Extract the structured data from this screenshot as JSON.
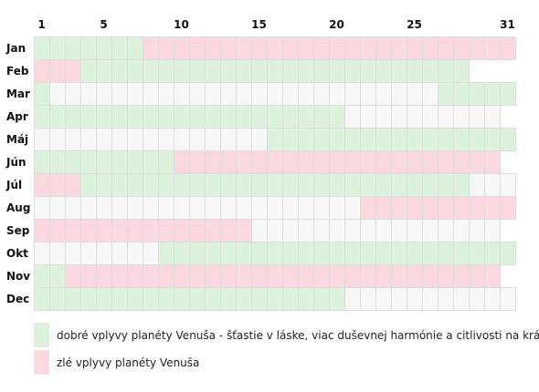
{
  "chart_data": {
    "type": "heatmap",
    "title": "",
    "day_tick_labels": [
      "1",
      "5",
      "10",
      "15",
      "20",
      "25",
      "31"
    ],
    "day_ticks": [
      1,
      5,
      10,
      15,
      20,
      25,
      31
    ],
    "months": [
      "Jan",
      "Feb",
      "Mar",
      "Apr",
      "Máj",
      "Jún",
      "Júl",
      "Aug",
      "Sep",
      "Okt",
      "Nov",
      "Dec"
    ],
    "days_in_month": [
      31,
      28,
      31,
      30,
      31,
      30,
      31,
      31,
      30,
      31,
      30,
      31
    ],
    "categories": {
      "good": "dobré vplyvy planéty Venuša - šťastie v láske, viac duševnej harmónie a citlivosti na krásu",
      "bad": "zlé vplyvy planéty Venuša"
    },
    "ranges": [
      [
        {
          "from": 1,
          "to": 7,
          "type": "good"
        },
        {
          "from": 8,
          "to": 31,
          "type": "bad"
        }
      ],
      [
        {
          "from": 1,
          "to": 3,
          "type": "bad"
        },
        {
          "from": 4,
          "to": 28,
          "type": "good"
        }
      ],
      [
        {
          "from": 1,
          "to": 1,
          "type": "good"
        },
        {
          "from": 27,
          "to": 31,
          "type": "good"
        }
      ],
      [
        {
          "from": 1,
          "to": 20,
          "type": "good"
        }
      ],
      [
        {
          "from": 16,
          "to": 31,
          "type": "good"
        }
      ],
      [
        {
          "from": 1,
          "to": 9,
          "type": "good"
        },
        {
          "from": 10,
          "to": 30,
          "type": "bad"
        }
      ],
      [
        {
          "from": 1,
          "to": 3,
          "type": "bad"
        },
        {
          "from": 4,
          "to": 28,
          "type": "good"
        }
      ],
      [
        {
          "from": 22,
          "to": 31,
          "type": "bad"
        }
      ],
      [
        {
          "from": 1,
          "to": 14,
          "type": "bad"
        }
      ],
      [
        {
          "from": 9,
          "to": 31,
          "type": "good"
        }
      ],
      [
        {
          "from": 1,
          "to": 2,
          "type": "good"
        },
        {
          "from": 3,
          "to": 30,
          "type": "bad"
        }
      ],
      [
        {
          "from": 1,
          "to": 20,
          "type": "good"
        }
      ]
    ],
    "colors": {
      "good": "#dcf2dc",
      "bad": "#fad8df",
      "neutral": "#f7f7f7",
      "border": "#dddddd"
    }
  },
  "legend": {
    "good_label": "dobré vplyvy planéty Venuša - šťastie v láske, viac duševnej harmónie a citlivosti na krásu",
    "bad_label": "zlé vplyvy planéty Venuša"
  }
}
